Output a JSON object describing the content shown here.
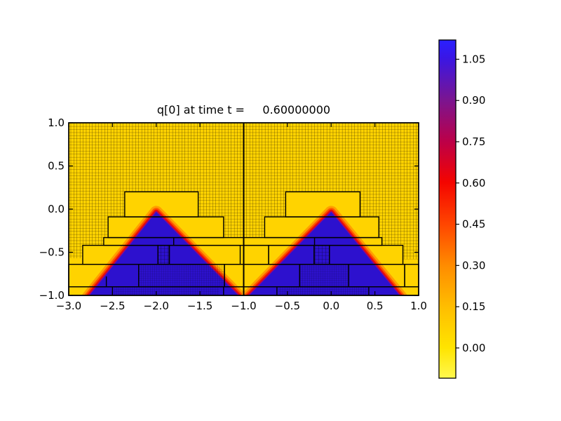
{
  "title": {
    "text": "q[0] at time t =     0.60000000"
  },
  "chart_data": {
    "type": "heatmap",
    "title": "q[0] at time t =     0.60000000",
    "time": "0.60000000",
    "xlim": [
      -3.0,
      1.0
    ],
    "ylim": [
      -1.0,
      1.0
    ],
    "x_ticks": [
      {
        "value": -3.0,
        "label": "−3.0"
      },
      {
        "value": -2.5,
        "label": "−2.5"
      },
      {
        "value": -2.0,
        "label": "−2.0"
      },
      {
        "value": -1.5,
        "label": "−1.5"
      },
      {
        "value": -1.0,
        "label": "−1.0"
      },
      {
        "value": -0.5,
        "label": "−0.5"
      },
      {
        "value": 0.0,
        "label": "0.0"
      },
      {
        "value": 0.5,
        "label": "0.5"
      },
      {
        "value": 1.0,
        "label": "1.0"
      }
    ],
    "y_ticks": [
      {
        "value": -1.0,
        "label": "−1.0"
      },
      {
        "value": -0.5,
        "label": "−0.5"
      },
      {
        "value": 0.0,
        "label": "0.0"
      },
      {
        "value": 0.5,
        "label": "0.5"
      },
      {
        "value": 1.0,
        "label": "1.0"
      }
    ],
    "field": {
      "background_value_color": "#FFD300",
      "pulse_value_color": "#2D11CE",
      "description": "two triangular pulses (q ~ 1, blue) on q ~ 0 background (yellow) with smeared red shock edges",
      "triangles": [
        {
          "apex": [
            -2.0,
            -0.04
          ],
          "base_left": [
            -2.78,
            -1.03
          ],
          "base_right": [
            -1.04,
            -1.03
          ]
        },
        {
          "apex": [
            0.0,
            -0.04
          ],
          "base_left": [
            -0.96,
            -1.03
          ],
          "base_right": [
            0.8,
            -1.03
          ]
        }
      ],
      "edge_bands": [
        {
          "color": "#FF9E00",
          "width": 19
        },
        {
          "color": "#FF5400",
          "width": 13
        },
        {
          "color": "#ED1400",
          "width": 8.5
        },
        {
          "color": "#BF0046",
          "width": 5
        },
        {
          "color": "#7A0F9E",
          "width": 2.8
        }
      ]
    },
    "amr": {
      "domain_split_x": -1.0,
      "mesh_regions": [
        [
          -3.0,
          -1.0,
          1.0,
          0.2
        ],
        [
          -1.0,
          1.0,
          1.0,
          0.2
        ],
        [
          -3.0,
          -2.36,
          0.2,
          -0.09
        ],
        [
          -1.52,
          -1.0,
          0.2,
          -0.09
        ],
        [
          -1.0,
          -0.52,
          0.2,
          -0.09
        ],
        [
          0.33,
          1.0,
          0.2,
          -0.09
        ],
        [
          -3.0,
          -2.55,
          -0.09,
          -0.33
        ],
        [
          -1.23,
          -1.0,
          -0.09,
          -0.33
        ],
        [
          -1.0,
          -0.76,
          -0.09,
          -0.33
        ],
        [
          0.545,
          1.0,
          -0.09,
          -0.33
        ],
        [
          -3.0,
          -2.6,
          -0.33,
          -0.42
        ],
        [
          0.58,
          1.0,
          -0.33,
          -0.42
        ],
        [
          -3.0,
          -2.84,
          -0.42,
          -0.57
        ],
        [
          0.82,
          1.0,
          -0.42,
          -0.58
        ]
      ],
      "patches": [
        [
          -2.36,
          -1.52,
          0.2,
          -0.09
        ],
        [
          -2.55,
          -1.23,
          -0.09,
          -0.33
        ],
        [
          -2.6,
          -1.0,
          -0.33,
          -0.42
        ],
        [
          -2.84,
          -1.98,
          -0.42,
          -0.64
        ],
        [
          -1.98,
          -1.85,
          -0.42,
          -0.64
        ],
        [
          -1.85,
          -1.04,
          -0.42,
          -0.64
        ],
        [
          -3.0,
          -2.2,
          -0.64,
          -0.9
        ],
        [
          -2.2,
          -1.22,
          -0.64,
          -0.9
        ],
        [
          -1.22,
          -1.0,
          -0.64,
          -0.9
        ],
        [
          -3.0,
          -1.0,
          -0.9,
          -1.0
        ],
        [
          -0.52,
          0.33,
          0.2,
          -0.09
        ],
        [
          -0.76,
          0.545,
          -0.09,
          -0.33
        ],
        [
          -1.0,
          0.58,
          -0.33,
          -0.42
        ],
        [
          -1.0,
          -0.715,
          -0.42,
          -0.64
        ],
        [
          -0.715,
          -0.195,
          -0.42,
          -0.64
        ],
        [
          -0.195,
          -0.02,
          -0.42,
          -0.64
        ],
        [
          -0.02,
          0.82,
          -0.42,
          -0.64
        ],
        [
          -1.0,
          -0.36,
          -0.64,
          -0.9
        ],
        [
          -0.36,
          0.2,
          -0.64,
          -0.9
        ],
        [
          0.2,
          0.84,
          -0.64,
          -0.9
        ],
        [
          0.84,
          1.0,
          -0.64,
          -0.9
        ],
        [
          -1.0,
          1.0,
          -0.9,
          -1.0
        ]
      ],
      "dividers": [
        [
          -1.8,
          -0.33,
          -0.42
        ],
        [
          -0.19,
          -0.33,
          -0.42
        ],
        [
          -2.57,
          -0.78,
          -0.9
        ],
        [
          -2.5,
          -0.9,
          -1.0
        ],
        [
          -1.23,
          -0.9,
          -1.0
        ],
        [
          -0.62,
          -0.9,
          -1.0
        ],
        [
          0.43,
          -0.9,
          -1.0
        ]
      ],
      "mesh_overlays": [
        [
          -1.98,
          -1.85,
          -0.42,
          -0.64,
          "medium"
        ],
        [
          -2.2,
          -1.22,
          -0.64,
          -0.9,
          "fine"
        ],
        [
          -2.48,
          -1.28,
          -0.9,
          -1.0,
          "fine"
        ],
        [
          -0.195,
          -0.02,
          -0.42,
          -0.64,
          "medium"
        ],
        [
          -0.36,
          0.2,
          -0.64,
          -0.9,
          "fine"
        ],
        [
          -0.6,
          0.42,
          -0.9,
          -1.0,
          "fine"
        ]
      ]
    },
    "colorbar": {
      "ticks": [
        {
          "value": 0.0,
          "label": "0.00"
        },
        {
          "value": 0.15,
          "label": "0.15"
        },
        {
          "value": 0.3,
          "label": "0.30"
        },
        {
          "value": 0.45,
          "label": "0.45"
        },
        {
          "value": 0.6,
          "label": "0.60"
        },
        {
          "value": 0.75,
          "label": "0.75"
        },
        {
          "value": 0.9,
          "label": "0.90"
        },
        {
          "value": 1.05,
          "label": "1.05"
        }
      ],
      "vmin": -0.11,
      "vmax": 1.12,
      "gradient_top_to_bottom": [
        [
          0.0,
          "#2A20FF"
        ],
        [
          0.054,
          "#3A16E4"
        ],
        [
          0.176,
          "#7A1591"
        ],
        [
          0.3,
          "#BC0048"
        ],
        [
          0.42,
          "#F40400"
        ],
        [
          0.545,
          "#FF4600"
        ],
        [
          0.667,
          "#FF8C00"
        ],
        [
          0.79,
          "#FFBE00"
        ],
        [
          0.91,
          "#FFE400"
        ],
        [
          1.0,
          "#FFF84E"
        ]
      ]
    }
  }
}
